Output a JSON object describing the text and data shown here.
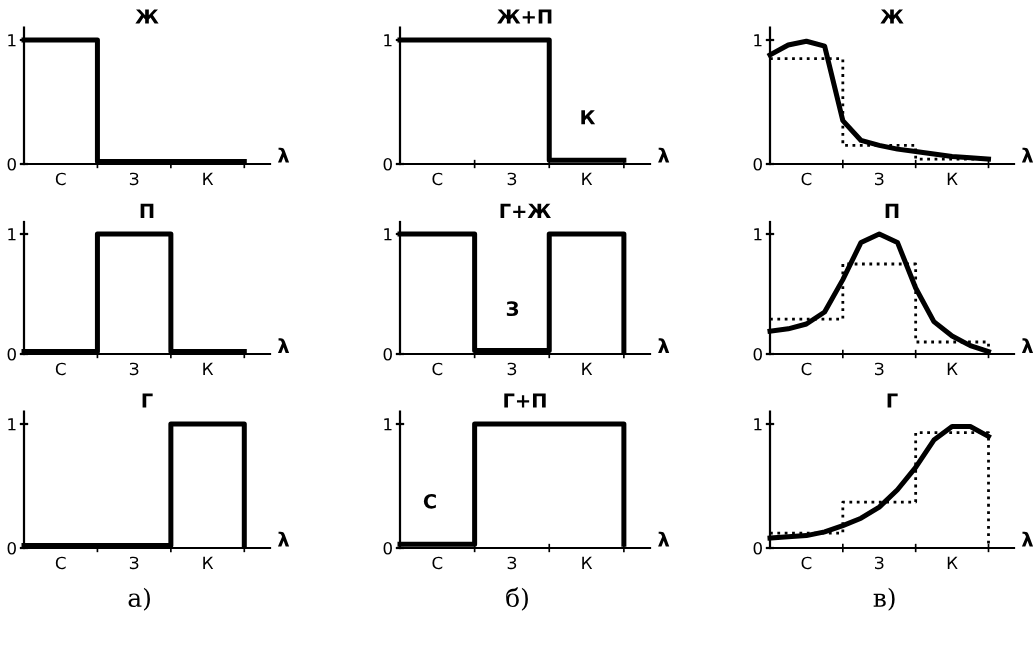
{
  "chart_data": [
    {
      "type": "step",
      "title": "Ж",
      "xlabel": "λ",
      "ylim": [
        0,
        1.1
      ],
      "yticks": [
        0,
        1
      ],
      "categories": [
        null,
        null,
        "С",
        null,
        null,
        null,
        "З",
        null,
        null,
        null,
        "К",
        null,
        null
      ],
      "series": [
        {
          "color": "#000000",
          "line_style": "solid",
          "values": [
            1,
            1,
            1,
            1,
            0.02,
            0.02,
            0.02,
            0.02,
            0.02,
            0.02,
            0.02,
            0.02,
            0.02
          ]
        }
      ]
    },
    {
      "type": "step",
      "title": "Ж+П",
      "xlabel": "λ",
      "ylim": [
        0,
        1.1
      ],
      "yticks": [
        0,
        1
      ],
      "categories": [
        null,
        null,
        "С",
        null,
        null,
        null,
        "З",
        null,
        null,
        null,
        "К",
        null,
        null
      ],
      "annotations": [
        "К"
      ],
      "series": [
        {
          "color": "#000000",
          "line_style": "solid",
          "values": [
            1,
            1,
            1,
            1,
            1,
            1,
            1,
            1,
            0.03,
            0.03,
            0.03,
            0.03,
            0.03
          ]
        }
      ]
    },
    {
      "type": "line",
      "title": "Ж",
      "xlabel": "λ",
      "ylim": [
        0,
        1.1
      ],
      "yticks": [
        0,
        1
      ],
      "categories": [
        null,
        null,
        "С",
        null,
        null,
        null,
        "З",
        null,
        null,
        null,
        "К",
        null,
        null
      ],
      "series": [
        {
          "color": "#000000",
          "line_style": "solid",
          "values": [
            0.88,
            0.96,
            0.99,
            0.95,
            0.35,
            0.19,
            0.15,
            0.12,
            0.1,
            0.08,
            0.06,
            0.05,
            0.04
          ]
        },
        {
          "type": "step",
          "color": "#000000",
          "line_style": "dotted",
          "values": [
            0.85,
            0.85,
            0.85,
            0.85,
            0.15,
            0.15,
            0.15,
            0.15,
            0.04,
            0.04,
            0.04,
            0.04,
            0
          ]
        }
      ]
    },
    {
      "type": "step",
      "title": "П",
      "xlabel": "λ",
      "ylim": [
        0,
        1.1
      ],
      "yticks": [
        0,
        1
      ],
      "categories": [
        null,
        null,
        "С",
        null,
        null,
        null,
        "З",
        null,
        null,
        null,
        "К",
        null,
        null
      ],
      "series": [
        {
          "color": "#000000",
          "line_style": "solid",
          "values": [
            0.02,
            0.02,
            0.02,
            0.02,
            1,
            1,
            1,
            1,
            0.02,
            0.02,
            0.02,
            0.02,
            0.02
          ]
        }
      ]
    },
    {
      "type": "step",
      "title": "Г+Ж",
      "xlabel": "λ",
      "ylim": [
        0,
        1.1
      ],
      "yticks": [
        0,
        1
      ],
      "categories": [
        null,
        null,
        "С",
        null,
        null,
        null,
        "З",
        null,
        null,
        null,
        "К",
        null,
        null
      ],
      "annotations": [
        "З"
      ],
      "series": [
        {
          "color": "#000000",
          "line_style": "solid",
          "values": [
            1,
            1,
            1,
            1,
            0.03,
            0.03,
            0.03,
            0.03,
            1,
            1,
            1,
            1,
            0.03
          ]
        }
      ]
    },
    {
      "type": "line",
      "title": "П",
      "xlabel": "λ",
      "ylim": [
        0,
        1.1
      ],
      "yticks": [
        0,
        1
      ],
      "categories": [
        null,
        null,
        "С",
        null,
        null,
        null,
        "З",
        null,
        null,
        null,
        "К",
        null,
        null
      ],
      "series": [
        {
          "color": "#000000",
          "line_style": "solid",
          "values": [
            0.19,
            0.21,
            0.25,
            0.35,
            0.62,
            0.93,
            1.0,
            0.93,
            0.55,
            0.27,
            0.15,
            0.07,
            0.02
          ]
        },
        {
          "type": "step",
          "color": "#000000",
          "line_style": "dotted",
          "values": [
            0.29,
            0.29,
            0.29,
            0.29,
            0.75,
            0.75,
            0.75,
            0.75,
            0.1,
            0.1,
            0.1,
            0.1,
            0
          ]
        }
      ]
    },
    {
      "type": "step",
      "title": "Г",
      "xlabel": "λ",
      "ylim": [
        0,
        1.1
      ],
      "yticks": [
        0,
        1
      ],
      "categories": [
        null,
        null,
        "С",
        null,
        null,
        null,
        "З",
        null,
        null,
        null,
        "К",
        null,
        null
      ],
      "annotations": [
        "а)"
      ],
      "series": [
        {
          "color": "#000000",
          "line_style": "solid",
          "values": [
            0.02,
            0.02,
            0.02,
            0.02,
            0.02,
            0.02,
            0.02,
            0.02,
            1,
            1,
            1,
            1,
            0.02
          ]
        }
      ]
    },
    {
      "type": "step",
      "title": "Г+П",
      "xlabel": "λ",
      "ylim": [
        0,
        1.1
      ],
      "yticks": [
        0,
        1
      ],
      "categories": [
        null,
        null,
        "С",
        null,
        null,
        null,
        "З",
        null,
        null,
        null,
        "К",
        null,
        null
      ],
      "annotations": [
        "С",
        "б)"
      ],
      "series": [
        {
          "color": "#000000",
          "line_style": "solid",
          "values": [
            0.03,
            0.03,
            0.03,
            0.03,
            1,
            1,
            1,
            1,
            1,
            1,
            1,
            1,
            0.03
          ]
        }
      ]
    },
    {
      "type": "line",
      "title": "Г",
      "xlabel": "λ",
      "ylim": [
        0,
        1.1
      ],
      "yticks": [
        0,
        1
      ],
      "categories": [
        null,
        null,
        "С",
        null,
        null,
        null,
        "З",
        null,
        null,
        null,
        "К",
        null,
        null
      ],
      "annotations": [
        "в)"
      ],
      "series": [
        {
          "color": "#000000",
          "line_style": "solid",
          "values": [
            0.08,
            0.09,
            0.1,
            0.13,
            0.18,
            0.24,
            0.33,
            0.47,
            0.65,
            0.87,
            0.98,
            0.98,
            0.9
          ]
        },
        {
          "type": "step",
          "color": "#000000",
          "line_style": "dotted",
          "values": [
            0.12,
            0.12,
            0.12,
            0.12,
            0.37,
            0.37,
            0.37,
            0.37,
            0.93,
            0.93,
            0.93,
            0.93,
            0
          ]
        }
      ]
    }
  ]
}
